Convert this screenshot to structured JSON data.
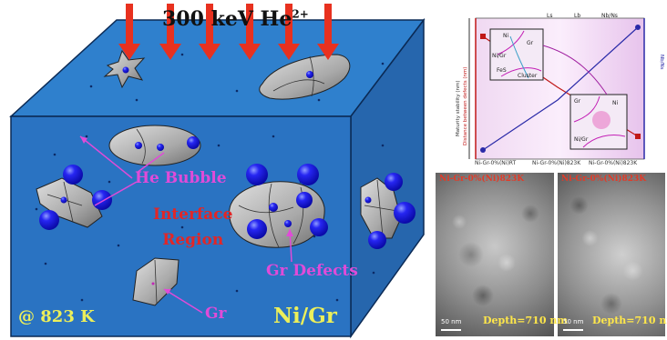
{
  "diagram": {
    "beam_label": "300 keV He",
    "beam_superscript": "2+",
    "he_bubble_label": "He Bubble",
    "interface_label_line1": "Interface",
    "interface_label_line2": "Region",
    "gr_defects_label": "Gr Defects",
    "gr_label": "Gr",
    "temperature_label": "@ 823 K",
    "material_label": "Ni/Gr",
    "colors": {
      "cube_front": "#2a73c2",
      "cube_top": "#2f80cd",
      "cube_side": "#2666ad",
      "arrow": "#e8311f",
      "bubble": "#1616e8",
      "label_magenta": "#e04bd8",
      "label_red": "#e32626",
      "label_yellow": "#ecef5a"
    }
  },
  "plot": {
    "legend": [
      "Ls",
      "Lb",
      "Nb/Ns"
    ],
    "x_ticks": [
      "Ni-Gr-0%(Ni)RT",
      "Ni-Gr-0%(Ni)823K",
      "Ni-Gr-0%(Ni)823K"
    ],
    "inset_labels": [
      "Ni",
      "Gr",
      "Ni/Gr",
      "FeS",
      "Cluster",
      "Gr",
      "Ni",
      "Ni/Gr"
    ]
  },
  "tem": {
    "left_title": "Ni-Gr-0%(Ni)823K",
    "right_title": "Ni-Gr-0%(Ni)823K",
    "left_depth": "Depth=710 nm",
    "right_depth": "Depth=710 nm",
    "scale_left": "50 nm",
    "scale_right": "50 nm"
  }
}
